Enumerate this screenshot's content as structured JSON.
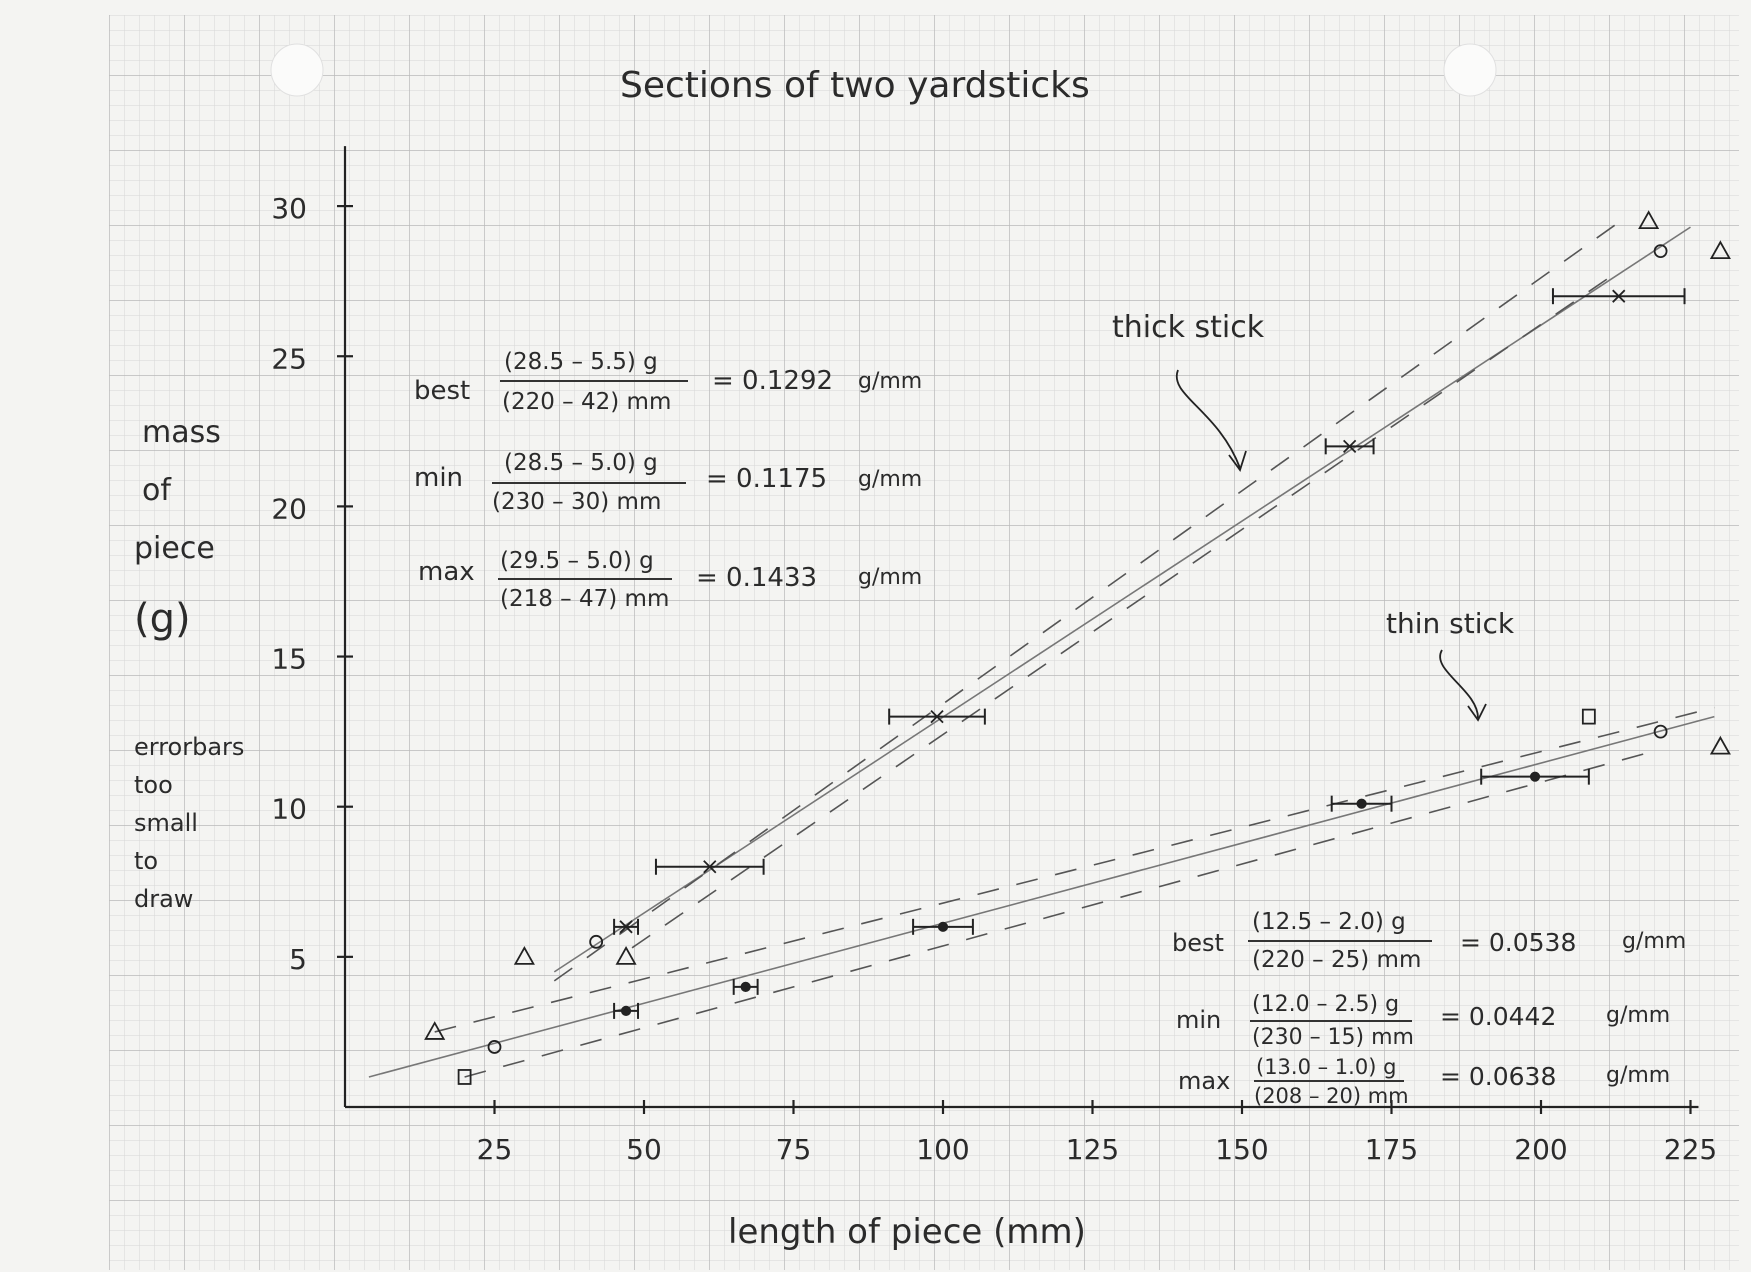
{
  "title": "Sections of two yardsticks",
  "xlabel": "length of piece (mm)",
  "ylabel_lines": [
    "mass",
    "of",
    "piece",
    "(g)"
  ],
  "note_lines": [
    "errorbars",
    "too",
    "small",
    "to",
    "draw"
  ],
  "colors": {
    "paper": "#f4f4f2",
    "grid_minor": "#d6d6d6",
    "grid_major": "#b9b9b9",
    "ink": "#222222",
    "fit_line": "#777777"
  },
  "chart_data": {
    "type": "scatter",
    "title": "Sections of two yardsticks",
    "xlabel": "length of piece (mm)",
    "ylabel": "mass of piece (g)",
    "xlim": [
      0,
      225
    ],
    "ylim": [
      0,
      30
    ],
    "xticks": [
      "25",
      "50",
      "75",
      "100",
      "125",
      "150",
      "175",
      "200",
      "225"
    ],
    "yticks": [
      "5",
      "10",
      "15",
      "20",
      "25",
      "30"
    ],
    "grid": true,
    "series": [
      {
        "name": "thick stick",
        "marker": "x",
        "points": [
          {
            "x": 47,
            "y": 6.0,
            "xerr": 2
          },
          {
            "x": 61,
            "y": 8.0,
            "xerr": 9
          },
          {
            "x": 99,
            "y": 13.0,
            "xerr": 8
          },
          {
            "x": 168,
            "y": 22.0,
            "xerr": 4
          },
          {
            "x": 213,
            "y": 27.0,
            "xerr": 11
          }
        ],
        "fit_best": [
          [
            35,
            4.5
          ],
          [
            225,
            29.3
          ]
        ],
        "fit_bounds": [
          [
            [
              35,
              4.2
            ],
            [
              214,
              29.6
            ]
          ],
          [
            [
              48,
              5.3
            ],
            [
              212,
              27.7
            ]
          ]
        ],
        "bound_points": [
          {
            "x": 42,
            "y": 5.5,
            "marker": "circle"
          },
          {
            "x": 220,
            "y": 28.5,
            "marker": "circle"
          },
          {
            "x": 30,
            "y": 5.0,
            "marker": "triangle"
          },
          {
            "x": 47,
            "y": 5.0,
            "marker": "triangle"
          },
          {
            "x": 218,
            "y": 29.5,
            "marker": "triangle"
          },
          {
            "x": 230,
            "y": 28.5,
            "marker": "triangle"
          }
        ]
      },
      {
        "name": "thin stick",
        "marker": "dot",
        "points": [
          {
            "x": 47,
            "y": 3.2,
            "xerr": 2
          },
          {
            "x": 67,
            "y": 4.0,
            "xerr": 2
          },
          {
            "x": 100,
            "y": 6.0,
            "xerr": 5
          },
          {
            "x": 170,
            "y": 10.1,
            "xerr": 5
          },
          {
            "x": 199,
            "y": 11.0,
            "xerr": 9
          }
        ],
        "fit_best": [
          [
            4,
            1.0
          ],
          [
            229,
            13.0
          ]
        ],
        "fit_bounds": [
          [
            [
              15,
              2.5
            ],
            [
              229,
              13.3
            ]
          ],
          [
            [
              20,
              1.0
            ],
            [
              218,
              11.8
            ]
          ]
        ],
        "bound_points": [
          {
            "x": 25,
            "y": 2.0,
            "marker": "circle"
          },
          {
            "x": 220,
            "y": 12.5,
            "marker": "circle"
          },
          {
            "x": 20,
            "y": 1.0,
            "marker": "square"
          },
          {
            "x": 208,
            "y": 13.0,
            "marker": "square"
          },
          {
            "x": 15,
            "y": 2.5,
            "marker": "triangle"
          },
          {
            "x": 230,
            "y": 12.0,
            "marker": "triangle"
          }
        ]
      }
    ],
    "annotations": [
      "thick stick",
      "thin stick"
    ]
  },
  "thick_slopes": [
    {
      "label": "best",
      "num": "(28.5 – 5.5) g",
      "den": "(220 – 42) mm",
      "result": "= 0.1292",
      "unit": "g/mm"
    },
    {
      "label": "min",
      "num": "(28.5 – 5.0) g",
      "den": "(230 – 30) mm",
      "result": "= 0.1175",
      "unit": "g/mm"
    },
    {
      "label": "max",
      "num": "(29.5 – 5.0) g",
      "den": "(218 – 47) mm",
      "result": "= 0.1433",
      "unit": "g/mm"
    }
  ],
  "thin_slopes": [
    {
      "label": "best",
      "num": "(12.5 – 2.0) g",
      "den": "(220 – 25) mm",
      "result": "= 0.0538",
      "unit": "g/mm"
    },
    {
      "label": "min",
      "num": "(12.0 – 2.5) g",
      "den": "(230 – 15) mm",
      "result": "= 0.0442",
      "unit": "g/mm"
    },
    {
      "label": "max",
      "num": "(13.0 – 1.0) g",
      "den": "(208 – 20) mm",
      "result": "= 0.0638",
      "unit": "g/mm"
    }
  ]
}
